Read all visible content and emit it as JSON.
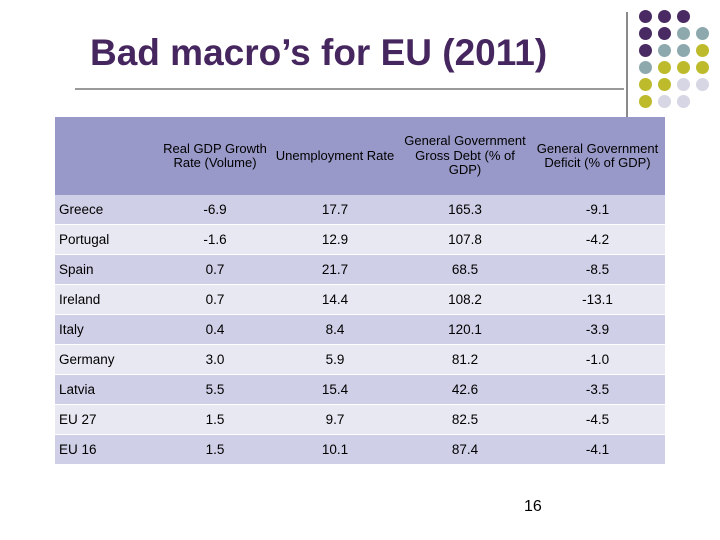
{
  "slide": {
    "title": "Bad macro’s for EU (2011)",
    "page_number": "16"
  },
  "table": {
    "headers": [
      "",
      "Real GDP Growth Rate (Volume)",
      "Unemployment Rate",
      "General Government Gross Debt (% of GDP)",
      "General Government Deficit (% of GDP)"
    ],
    "rows": [
      [
        "Greece",
        "-6.9",
        "17.7",
        "165.3",
        "-9.1"
      ],
      [
        "Portugal",
        "-1.6",
        "12.9",
        "107.8",
        "-4.2"
      ],
      [
        "Spain",
        "0.7",
        "21.7",
        "68.5",
        "-8.5"
      ],
      [
        "Ireland",
        "0.7",
        "14.4",
        "108.2",
        "-13.1"
      ],
      [
        "Italy",
        "0.4",
        "8.4",
        "120.1",
        "-3.9"
      ],
      [
        "Germany",
        "3.0",
        "5.9",
        "81.2",
        "-1.0"
      ],
      [
        "Latvia",
        "5.5",
        "15.4",
        "42.6",
        "-3.5"
      ],
      [
        "EU 27",
        "1.5",
        "9.7",
        "82.5",
        "-4.5"
      ],
      [
        "EU 16",
        "1.5",
        "10.1",
        "87.4",
        "-4.1"
      ]
    ]
  },
  "colors": {
    "title": "#46265e",
    "header_bg": "#9999c9",
    "row_odd": "#cfcfe7",
    "row_even": "#e8e8f3",
    "dot_purple": "#4a2a63",
    "dot_teal": "#8ea9ae",
    "dot_olive": "#bdbb2b",
    "dot_lavender": "#d6d6e4"
  }
}
